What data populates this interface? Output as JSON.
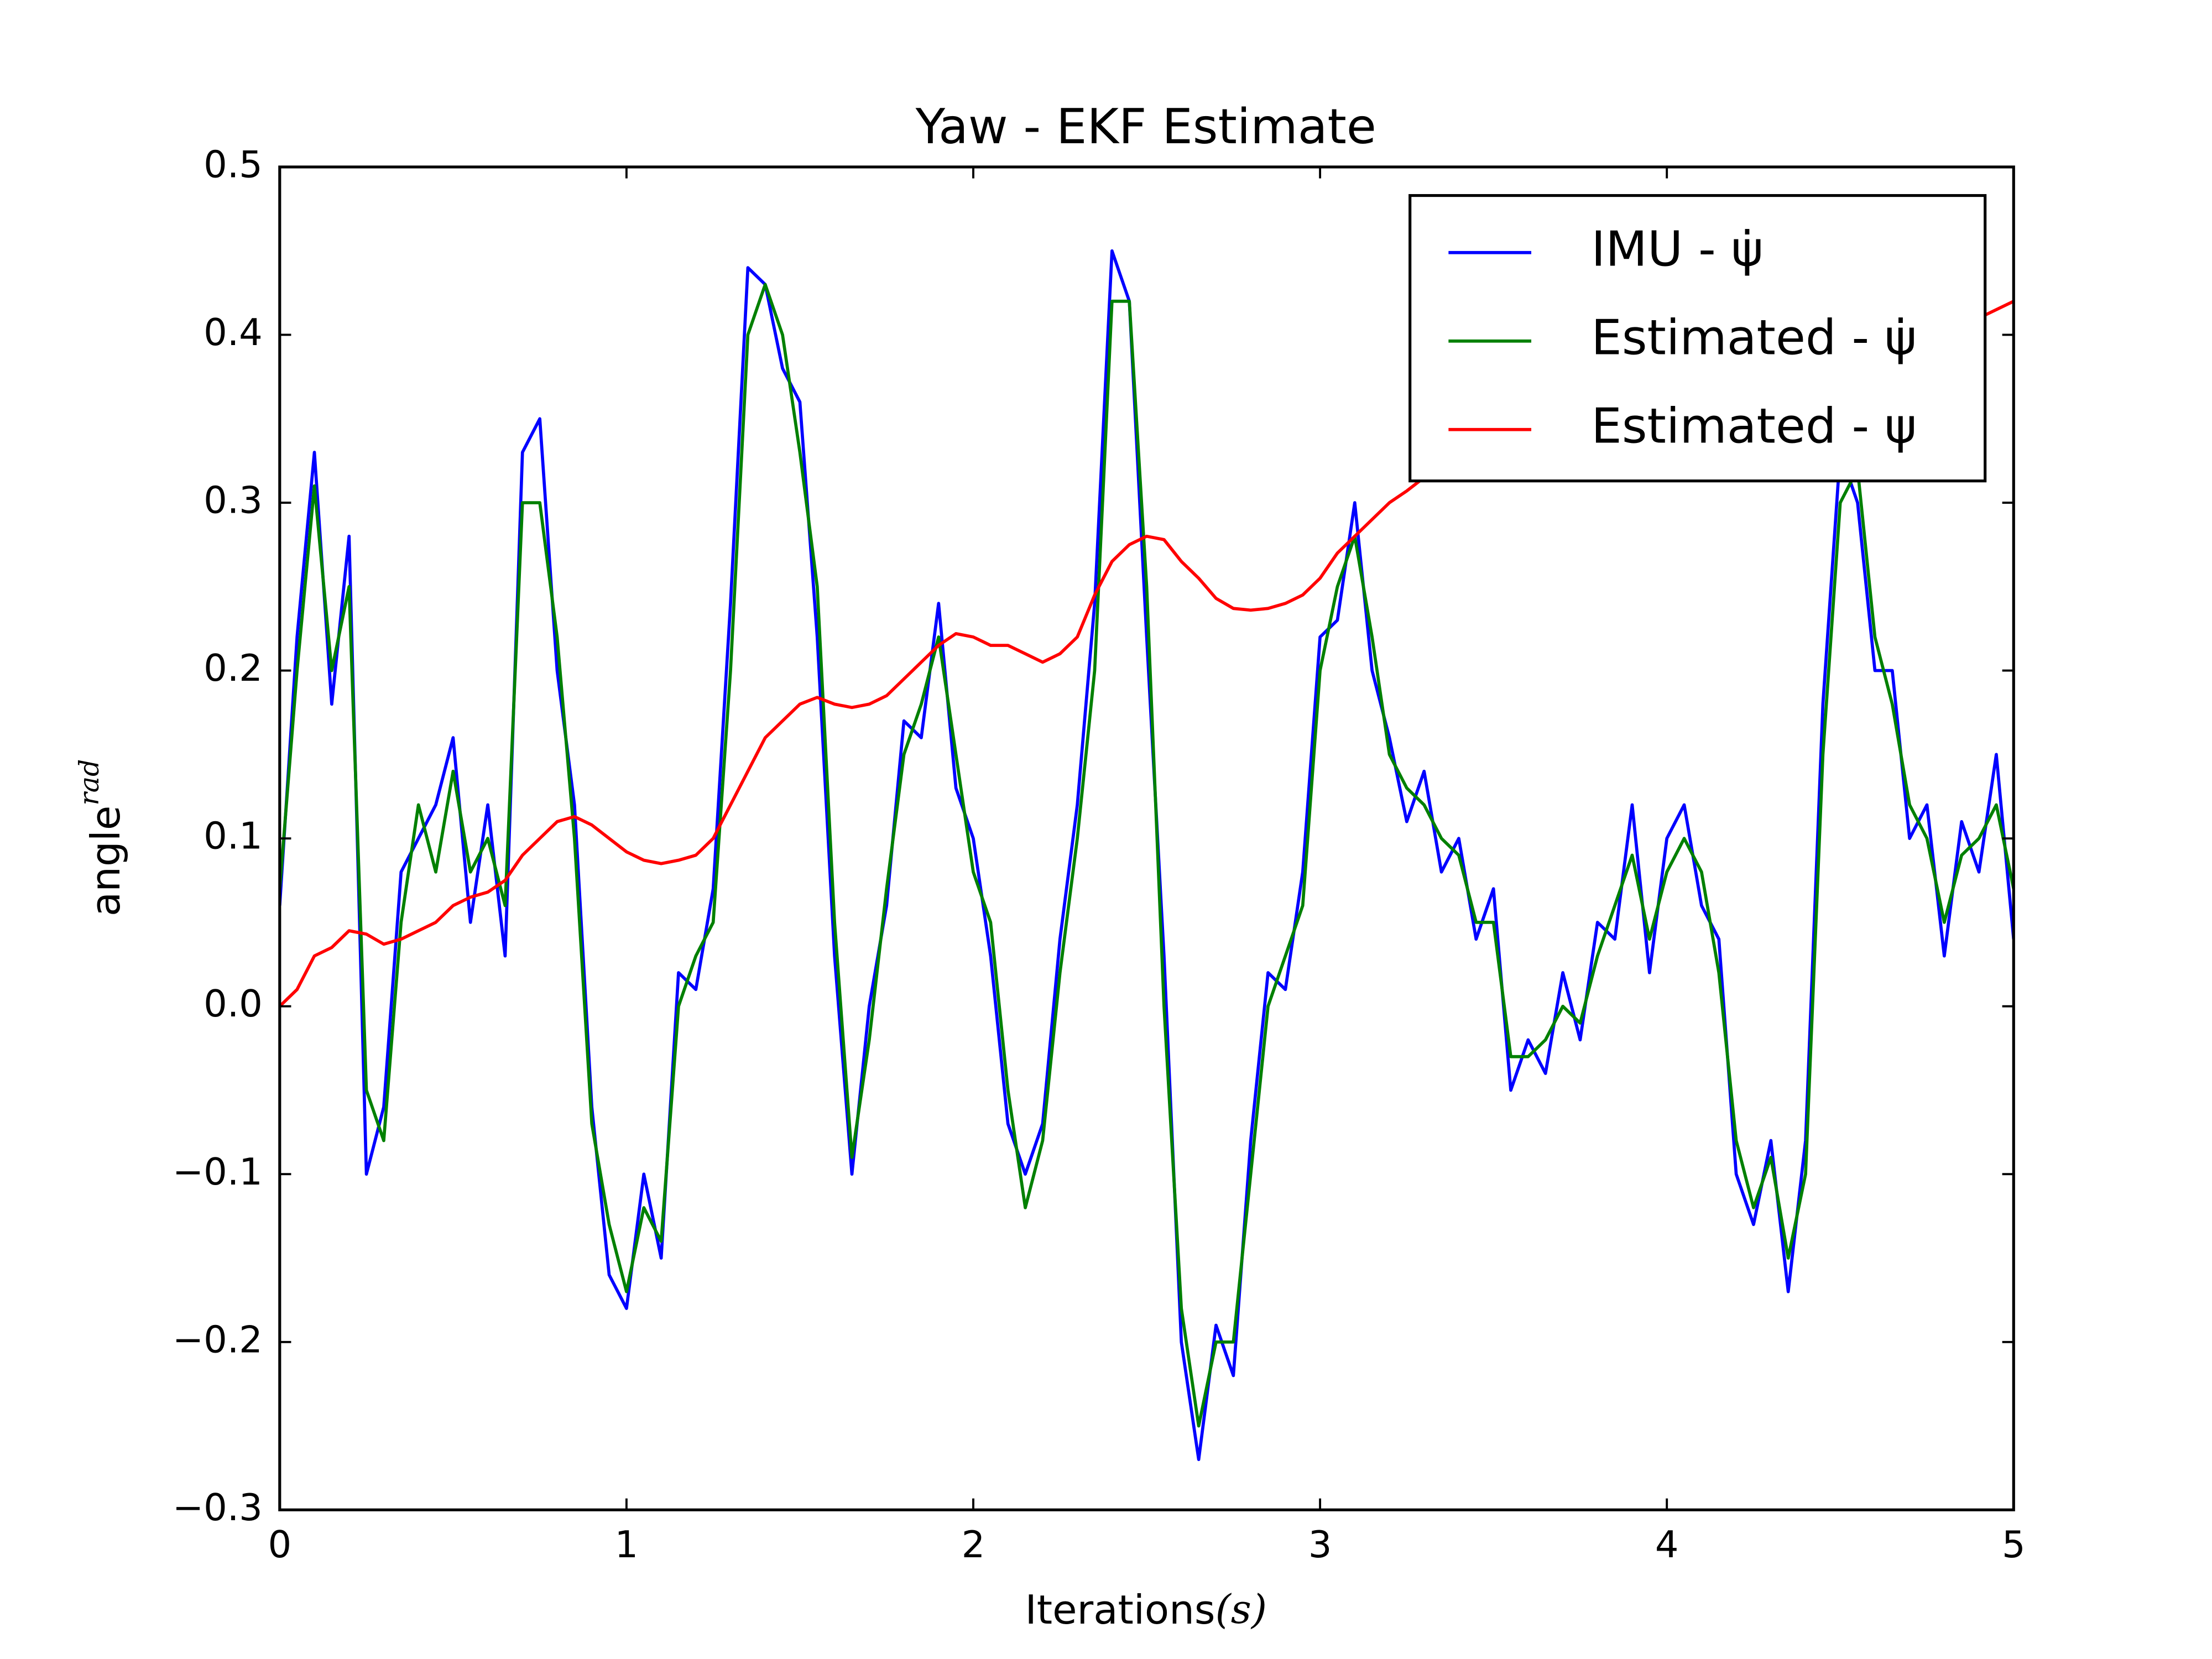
{
  "chart_data": {
    "type": "line",
    "title": "Yaw - EKF Estimate",
    "xlabel": {
      "text": "Iterations",
      "unit": "(s)"
    },
    "ylabel": {
      "text": "angle",
      "superscript": "rad"
    },
    "xlim": [
      0,
      5
    ],
    "ylim": [
      -0.3,
      0.5
    ],
    "xticks": [
      0,
      1,
      2,
      3,
      4,
      5
    ],
    "yticks": [
      {
        "value": -0.3,
        "label": "−0.3"
      },
      {
        "value": -0.2,
        "label": "−0.2"
      },
      {
        "value": -0.1,
        "label": "−0.1"
      },
      {
        "value": 0,
        "label": "0.0"
      },
      0.1,
      0.2,
      0.3,
      0.4,
      0.5
    ],
    "legend": "upper right",
    "x": [
      0,
      0.05,
      0.1,
      0.15,
      0.2,
      0.25,
      0.3,
      0.35,
      0.4,
      0.45,
      0.5,
      0.55,
      0.6,
      0.65,
      0.7,
      0.75,
      0.8,
      0.85,
      0.9,
      0.95,
      1,
      1.05,
      1.1,
      1.15,
      1.2,
      1.25,
      1.3,
      1.35,
      1.4,
      1.45,
      1.5,
      1.55,
      1.6,
      1.65,
      1.7,
      1.75,
      1.8,
      1.85,
      1.9,
      1.95,
      2,
      2.05,
      2.1,
      2.15,
      2.2,
      2.25,
      2.3,
      2.35,
      2.4,
      2.45,
      2.5,
      2.55,
      2.6,
      2.65,
      2.7,
      2.75,
      2.8,
      2.85,
      2.9,
      2.95,
      3,
      3.05,
      3.1,
      3.15,
      3.2,
      3.25,
      3.3,
      3.35,
      3.4,
      3.45,
      3.5,
      3.55,
      3.6,
      3.65,
      3.7,
      3.75,
      3.8,
      3.85,
      3.9,
      3.95,
      4,
      4.05,
      4.1,
      4.15,
      4.2,
      4.25,
      4.3,
      4.35,
      4.4,
      4.45,
      4.5,
      4.55,
      4.6,
      4.65,
      4.7,
      4.75,
      4.8,
      4.85,
      4.9,
      4.95,
      5
    ],
    "series": [
      {
        "name": "IMU - ψ̇",
        "color": "#0000ff",
        "values": [
          0.06,
          0.22,
          0.33,
          0.18,
          0.28,
          -0.1,
          -0.06,
          0.08,
          0.1,
          0.12,
          0.16,
          0.05,
          0.12,
          0.03,
          0.33,
          0.35,
          0.2,
          0.12,
          -0.06,
          -0.16,
          -0.18,
          -0.1,
          -0.15,
          0.02,
          0.01,
          0.07,
          0.24,
          0.44,
          0.43,
          0.38,
          0.36,
          0.22,
          0.03,
          -0.1,
          0.0,
          0.06,
          0.17,
          0.16,
          0.24,
          0.13,
          0.1,
          0.03,
          -0.07,
          -0.1,
          -0.07,
          0.04,
          0.12,
          0.24,
          0.45,
          0.42,
          0.22,
          0.03,
          -0.2,
          -0.27,
          -0.19,
          -0.22,
          -0.08,
          0.02,
          0.01,
          0.08,
          0.22,
          0.23,
          0.3,
          0.2,
          0.16,
          0.11,
          0.14,
          0.08,
          0.1,
          0.04,
          0.07,
          -0.05,
          -0.02,
          -0.04,
          0.02,
          -0.02,
          0.05,
          0.04,
          0.12,
          0.02,
          0.1,
          0.12,
          0.06,
          0.04,
          -0.1,
          -0.13,
          -0.08,
          -0.17,
          -0.08,
          0.18,
          0.33,
          0.3,
          0.2,
          0.2,
          0.1,
          0.12,
          0.03,
          0.11,
          0.08,
          0.15,
          0.04
        ]
      },
      {
        "name": "Estimated - ψ̇",
        "color": "#008000",
        "values": [
          0.07,
          0.2,
          0.31,
          0.2,
          0.25,
          -0.05,
          -0.08,
          0.05,
          0.12,
          0.08,
          0.14,
          0.08,
          0.1,
          0.06,
          0.3,
          0.3,
          0.22,
          0.1,
          -0.07,
          -0.13,
          -0.17,
          -0.12,
          -0.14,
          0.0,
          0.03,
          0.05,
          0.2,
          0.4,
          0.43,
          0.4,
          0.33,
          0.25,
          0.05,
          -0.09,
          -0.02,
          0.07,
          0.15,
          0.18,
          0.22,
          0.15,
          0.08,
          0.05,
          -0.05,
          -0.12,
          -0.08,
          0.02,
          0.1,
          0.2,
          0.42,
          0.42,
          0.25,
          0.0,
          -0.18,
          -0.25,
          -0.2,
          -0.2,
          -0.1,
          0.0,
          0.03,
          0.06,
          0.2,
          0.25,
          0.28,
          0.22,
          0.15,
          0.13,
          0.12,
          0.1,
          0.09,
          0.05,
          0.05,
          -0.03,
          -0.03,
          -0.02,
          0.0,
          -0.01,
          0.03,
          0.06,
          0.09,
          0.04,
          0.08,
          0.1,
          0.08,
          0.02,
          -0.08,
          -0.12,
          -0.09,
          -0.15,
          -0.1,
          0.15,
          0.3,
          0.32,
          0.22,
          0.18,
          0.12,
          0.1,
          0.05,
          0.09,
          0.1,
          0.12,
          0.07
        ]
      },
      {
        "name": "Estimated - ψ",
        "color": "#ff0000",
        "values": [
          0.0,
          0.01,
          0.03,
          0.035,
          0.045,
          0.043,
          0.037,
          0.04,
          0.045,
          0.05,
          0.06,
          0.065,
          0.068,
          0.075,
          0.09,
          0.1,
          0.11,
          0.113,
          0.108,
          0.1,
          0.092,
          0.087,
          0.085,
          0.087,
          0.09,
          0.1,
          0.12,
          0.14,
          0.16,
          0.17,
          0.18,
          0.184,
          0.18,
          0.178,
          0.18,
          0.185,
          0.195,
          0.205,
          0.215,
          0.222,
          0.22,
          0.215,
          0.215,
          0.21,
          0.205,
          0.21,
          0.22,
          0.245,
          0.265,
          0.275,
          0.28,
          0.278,
          0.265,
          0.255,
          0.243,
          0.237,
          0.236,
          0.237,
          0.24,
          0.245,
          0.255,
          0.27,
          0.28,
          0.29,
          0.3,
          0.307,
          0.315,
          0.32,
          0.325,
          0.33,
          0.335,
          0.34,
          0.345,
          0.35,
          0.355,
          0.36,
          0.363,
          0.366,
          0.37,
          0.372,
          0.375,
          0.377,
          0.38,
          0.382,
          0.384,
          0.386,
          0.388,
          0.39,
          0.392,
          0.393,
          0.395,
          0.396,
          0.397,
          0.398,
          0.399,
          0.4,
          0.4,
          0.402,
          0.41,
          0.415,
          0.42
        ]
      }
    ]
  }
}
